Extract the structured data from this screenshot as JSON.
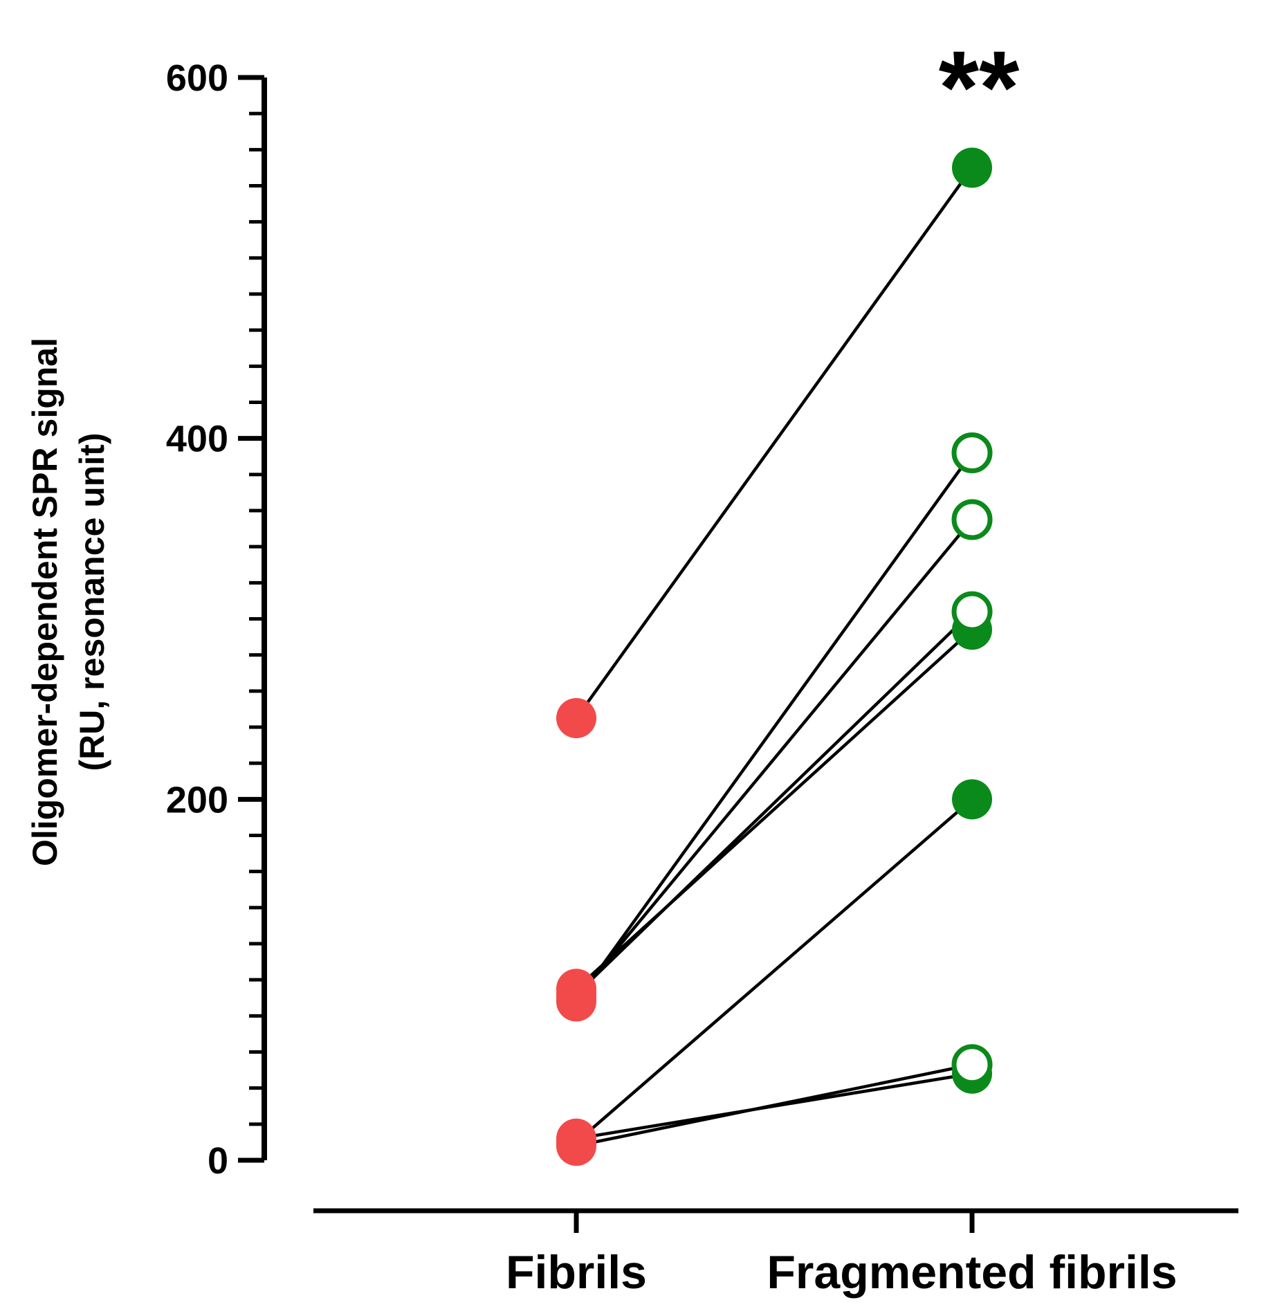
{
  "chart_data": {
    "type": "scatter",
    "subtype": "paired",
    "categories": [
      "Fibrils",
      "Fragmented fibrils"
    ],
    "ylabel_lines": [
      "Oligomer-dependent SPR signal",
      "(RU, resonance unit)"
    ],
    "ylim": [
      0,
      600
    ],
    "yticks": [
      0,
      200,
      400,
      600
    ],
    "y_minor_step": 20,
    "significance": "**",
    "colors": {
      "fibrils": "#f24a4a",
      "fragmented": "#0a8a1a",
      "line": "#000000"
    },
    "pairs": [
      {
        "fibrils": 245,
        "fragmented": 550,
        "fragmented_marker": "filled"
      },
      {
        "fibrils": 88,
        "fragmented": 392,
        "fragmented_marker": "open"
      },
      {
        "fibrils": 90,
        "fragmented": 355,
        "fragmented_marker": "open"
      },
      {
        "fibrils": 92,
        "fragmented": 304,
        "fragmented_marker": "open"
      },
      {
        "fibrils": 95,
        "fragmented": 294,
        "fragmented_marker": "filled"
      },
      {
        "fibrils": 10,
        "fragmented": 200,
        "fragmented_marker": "filled"
      },
      {
        "fibrils": 12,
        "fragmented": 48,
        "fragmented_marker": "filled"
      },
      {
        "fibrils": 8,
        "fragmented": 53,
        "fragmented_marker": "open"
      }
    ]
  }
}
